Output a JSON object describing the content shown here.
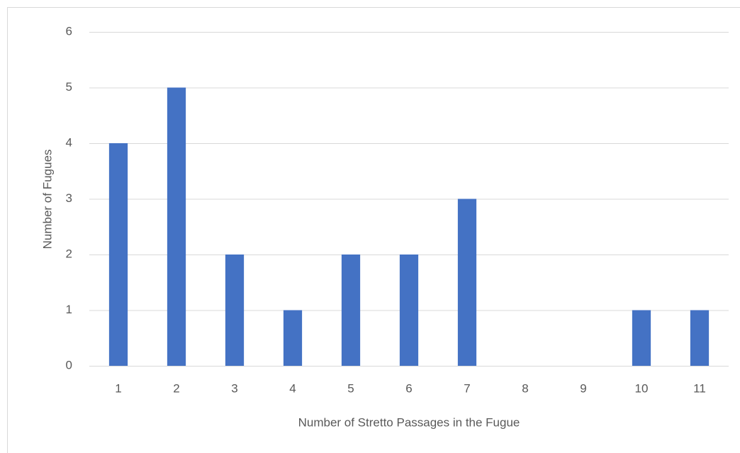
{
  "chart_data": {
    "type": "bar",
    "x_label": "Number of Stretto Passages in the Fugue",
    "y_label": "Number of Fugues",
    "categories": [
      "1",
      "2",
      "3",
      "4",
      "5",
      "6",
      "7",
      "8",
      "9",
      "10",
      "11"
    ],
    "values": [
      4,
      5,
      2,
      1,
      2,
      2,
      3,
      0,
      0,
      1,
      1
    ],
    "color": "#4472c4",
    "ylim": [
      0,
      6
    ],
    "yticks": [
      0,
      1,
      2,
      3,
      4,
      5,
      6
    ],
    "grid": true
  }
}
